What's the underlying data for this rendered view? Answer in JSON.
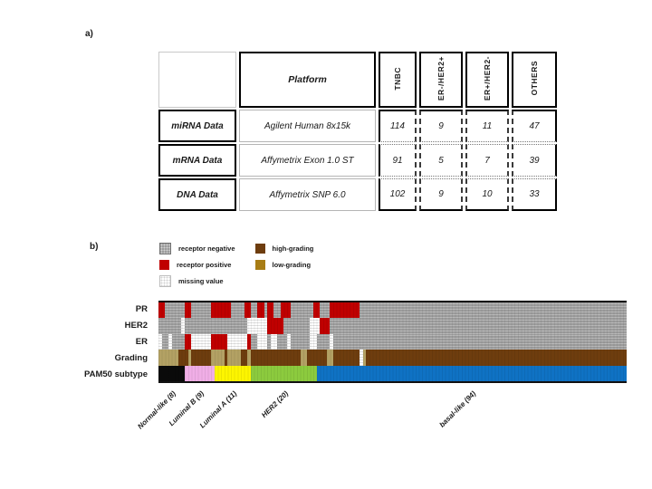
{
  "page": {
    "panel_a_label": "a)",
    "panel_b_label": "b)"
  },
  "table": {
    "header": {
      "platform": "Platform",
      "cols": [
        "TNBC",
        "ER-/HER2+",
        "ER+/HER2-",
        "OTHERS"
      ]
    },
    "rows": [
      {
        "label": "miRNA Data",
        "platform": "Agilent Human 8x15k",
        "values": [
          "114",
          "9",
          "11",
          "47"
        ]
      },
      {
        "label": "mRNA Data",
        "platform": "Affymetrix Exon 1.0 ST",
        "values": [
          "91",
          "5",
          "7",
          "39"
        ]
      },
      {
        "label": "DNA Data",
        "platform": "Affymetrix SNP 6.0",
        "values": [
          "102",
          "9",
          "10",
          "33"
        ]
      }
    ]
  },
  "legend": {
    "left": [
      {
        "label": "receptor negative"
      },
      {
        "label": "receptor positive"
      },
      {
        "label": "missing value"
      }
    ],
    "right": [
      {
        "label": "high-grading"
      },
      {
        "label": "low-grading"
      }
    ]
  },
  "colors": {
    "receptor_negative": "#9c9c9c",
    "receptor_positive": "#c00000",
    "missing_value": "#ffffff",
    "high_grading": "#6e3d0e",
    "low_grading_legend": "#a87d15",
    "low_grading_strip": "#b3a164",
    "normal_like": "#0a0a0a",
    "luminal_b": "#f0aee6",
    "luminal_a": "#fdf500",
    "her2": "#8ccb3e",
    "basal_like": "#0f72c4"
  },
  "chart_data": {
    "type": "heatmap",
    "n_samples": 142,
    "row_labels": [
      "PR",
      "HER2",
      "ER",
      "Grading",
      "PAM50 subtype"
    ],
    "states_legend": {
      "neg": "receptor negative",
      "pos": "receptor positive",
      "mis": "missing value",
      "high": "high-grading",
      "low": "low-grading"
    },
    "groups": [
      {
        "name": "Normal-like",
        "label": "Normal-like (8)",
        "count": 8,
        "color_key": "normal_like"
      },
      {
        "name": "Luminal B",
        "label": "Luminal B (9)",
        "count": 9,
        "color_key": "luminal_b"
      },
      {
        "name": "Luminal A",
        "label": "Luminal A (11)",
        "count": 11,
        "color_key": "luminal_a"
      },
      {
        "name": "HER2",
        "label": "HER2 (20)",
        "count": 20,
        "color_key": "her2"
      },
      {
        "name": "basal-like",
        "label": "basal-like (94)",
        "count": 94,
        "color_key": "basal_like"
      }
    ],
    "tracks": {
      "PR": [
        [
          1,
          2,
          "pos"
        ],
        [
          3,
          8,
          "neg"
        ],
        [
          9,
          10,
          "pos"
        ],
        [
          11,
          16,
          "neg"
        ],
        [
          17,
          22,
          "pos"
        ],
        [
          23,
          26,
          "neg"
        ],
        [
          27,
          28,
          "pos"
        ],
        [
          29,
          30,
          "neg"
        ],
        [
          31,
          32,
          "pos"
        ],
        [
          33,
          33,
          "neg"
        ],
        [
          34,
          35,
          "pos"
        ],
        [
          36,
          37,
          "neg"
        ],
        [
          38,
          40,
          "pos"
        ],
        [
          41,
          47,
          "neg"
        ],
        [
          48,
          49,
          "pos"
        ],
        [
          50,
          52,
          "neg"
        ],
        [
          53,
          61,
          "pos"
        ],
        [
          62,
          142,
          "neg"
        ]
      ],
      "HER2": [
        [
          1,
          7,
          "neg"
        ],
        [
          8,
          8,
          "mis"
        ],
        [
          9,
          27,
          "neg"
        ],
        [
          28,
          33,
          "mis"
        ],
        [
          34,
          38,
          "pos"
        ],
        [
          39,
          46,
          "neg"
        ],
        [
          47,
          49,
          "mis"
        ],
        [
          50,
          52,
          "pos"
        ],
        [
          53,
          142,
          "neg"
        ]
      ],
      "ER": [
        [
          1,
          1,
          "mis"
        ],
        [
          2,
          3,
          "neg"
        ],
        [
          4,
          4,
          "mis"
        ],
        [
          5,
          8,
          "neg"
        ],
        [
          9,
          10,
          "pos"
        ],
        [
          11,
          16,
          "mis"
        ],
        [
          17,
          21,
          "pos"
        ],
        [
          22,
          27,
          "mis"
        ],
        [
          28,
          28,
          "pos"
        ],
        [
          29,
          30,
          "neg"
        ],
        [
          31,
          33,
          "mis"
        ],
        [
          34,
          34,
          "neg"
        ],
        [
          35,
          36,
          "mis"
        ],
        [
          37,
          39,
          "neg"
        ],
        [
          40,
          40,
          "mis"
        ],
        [
          41,
          46,
          "neg"
        ],
        [
          47,
          48,
          "mis"
        ],
        [
          49,
          52,
          "neg"
        ],
        [
          53,
          53,
          "mis"
        ],
        [
          54,
          142,
          "neg"
        ]
      ],
      "Grading": [
        [
          1,
          6,
          "low"
        ],
        [
          7,
          9,
          "high"
        ],
        [
          10,
          10,
          "low"
        ],
        [
          11,
          16,
          "high"
        ],
        [
          17,
          20,
          "low"
        ],
        [
          21,
          21,
          "high"
        ],
        [
          22,
          25,
          "low"
        ],
        [
          26,
          27,
          "high"
        ],
        [
          28,
          28,
          "low"
        ],
        [
          29,
          43,
          "high"
        ],
        [
          44,
          45,
          "low"
        ],
        [
          46,
          51,
          "high"
        ],
        [
          52,
          53,
          "low"
        ],
        [
          54,
          61,
          "high"
        ],
        [
          62,
          62,
          "mis"
        ],
        [
          63,
          63,
          "low"
        ],
        [
          64,
          142,
          "high"
        ]
      ]
    }
  }
}
